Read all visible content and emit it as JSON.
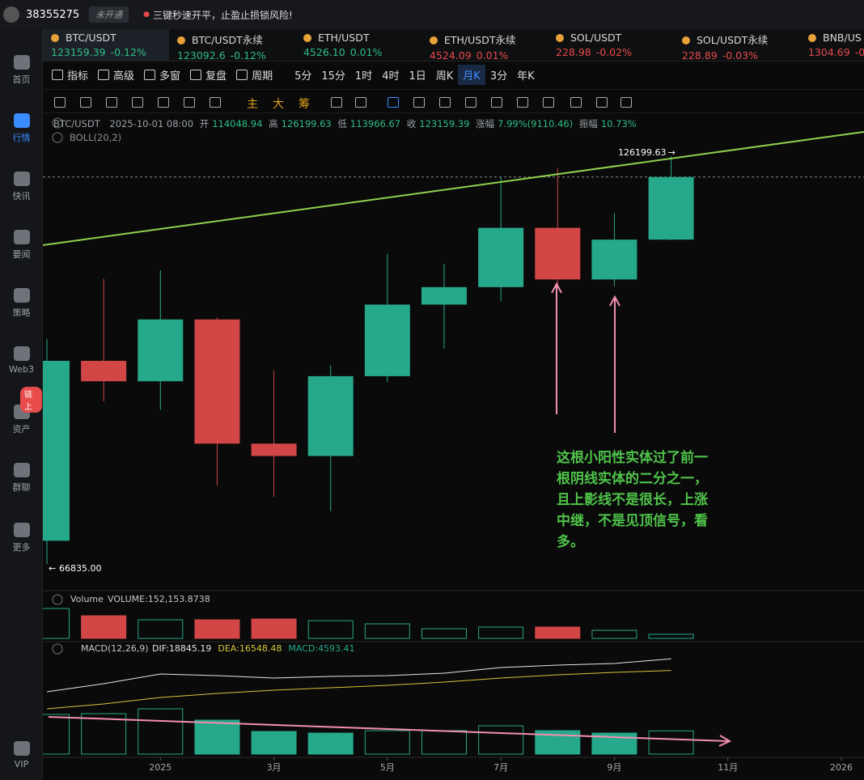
{
  "top_bar": {
    "account": "38355275",
    "status": "未开通",
    "notice": "三键秒速开平，止盈止损锁风险!"
  },
  "sidebar": [
    "首页",
    "行情",
    "快讯",
    "要闻",
    "策略",
    "Web3",
    "资产",
    "群聊",
    "更多",
    "VIP"
  ],
  "sidebar_badge": "链上",
  "tickers": [
    {
      "name": "BTC/USDT",
      "price": "123159.39",
      "change": "-0.12%",
      "color": "#2ebd85"
    },
    {
      "name": "BTC/USDT永续",
      "price": "123092.6",
      "change": "-0.12%",
      "color": "#2ebd85"
    },
    {
      "name": "ETH/USDT",
      "price": "4526.10",
      "change": "0.01%",
      "color": "#2ebd85"
    },
    {
      "name": "ETH/USDT永续",
      "price": "4524.09",
      "change": "0.01%",
      "color": "#e84b4b"
    },
    {
      "name": "SOL/USDT",
      "price": "228.98",
      "change": "-0.02%",
      "color": "#e84b4b"
    },
    {
      "name": "SOL/USDT永续",
      "price": "228.89",
      "change": "-0.03%",
      "color": "#e84b4b"
    },
    {
      "name": "BNB/US",
      "price": "1304.69",
      "change": "-0.",
      "color": "#e84b4b"
    }
  ],
  "toolbar": [
    "指标",
    "高级",
    "多窗",
    "复盘",
    "周期"
  ],
  "periods": [
    "5分",
    "15分",
    "1时",
    "4时",
    "1日",
    "周K",
    "月K",
    "3分",
    "年K"
  ],
  "tools": [
    "主",
    "大",
    "筹"
  ],
  "chart_header": {
    "symbol": "BTC/USDT",
    "time": "2025-10-01 08:00",
    "open_label": "开",
    "high_label": "高",
    "low_label": "低",
    "close_label": "收",
    "change_label": "涨幅",
    "change": "7.99%(9110.46)",
    "amplitude_label": "振幅",
    "amplitude": "10.73%",
    "indicator": "BOLL(20,2)"
  },
  "annotation": [
    "这根小阳性实体过了前一",
    "根阴线实体的二分之一，",
    "且上影线不是很长，上涨",
    "中继，不是见顶信号，看",
    "多。"
  ],
  "chart_data": [
    {
      "type": "candlestick",
      "x": [
        "2024-11",
        "2024-12",
        "2025-01",
        "2025-02",
        "2025-03",
        "2025-04",
        "2025-05",
        "2025-06",
        "2025-07",
        "2025-08",
        "2025-09",
        "2025-10"
      ],
      "open": [
        70215,
        96407,
        93429,
        102429,
        84350,
        82550,
        94172,
        104591,
        107135,
        115764,
        108246,
        114048.94
      ],
      "high": [
        99588,
        108353,
        109588,
        102750,
        95000,
        95758,
        111980,
        110530,
        123218,
        124474,
        117900,
        126199.63
      ],
      "low": [
        66835,
        90500,
        89256,
        78258,
        76606,
        74508,
        93322,
        98200,
        105100,
        107350,
        107255,
        113966.67
      ],
      "close": [
        96407,
        93429,
        102429,
        84350,
        82550,
        94172,
        104591,
        107135,
        115764,
        108246,
        114048.94,
        123159.39
      ],
      "low_label": "66835.00",
      "up_color": "#26a88a",
      "down_color": "#d24646",
      "ylim": [
        62950,
        131850
      ],
      "xlim": [
        "2024-11",
        "2026-01"
      ],
      "xticks": [
        {
          "value": "2025-01",
          "label": "2025"
        },
        {
          "value": "2025-03",
          "label": "3月"
        },
        {
          "value": "2025-05",
          "label": "5月"
        },
        {
          "value": "2025-07",
          "label": "7月"
        },
        {
          "value": "2025-09",
          "label": "9月"
        },
        {
          "value": "2025-11",
          "label": "11月"
        },
        {
          "value": "2026-01",
          "label": "2026"
        }
      ]
    },
    {
      "type": "bar",
      "title": "Volume",
      "legend": "VOLUME:152,153.8738",
      "values": [
        1110000,
        840000,
        690000,
        690000,
        720000,
        660000,
        540000,
        360000,
        420000,
        420000,
        300000,
        152153.8738
      ],
      "ylim": [
        0,
        1230000
      ]
    },
    {
      "type": "combo",
      "title": "MACD(12,26,9)",
      "ylim": [
        0,
        20320
      ],
      "series": [
        {
          "label": "DIF:18845.19",
          "kind": "line",
          "color": "#e6e6e6",
          "values": [
            12320,
            13920,
            15840,
            15520,
            15040,
            15360,
            15520,
            16000,
            17120,
            17600,
            17920,
            18845.19
          ]
        },
        {
          "label": "DEA:16548.48",
          "kind": "line",
          "color": "#d6c53a",
          "values": [
            8960,
            9920,
            11200,
            12000,
            12640,
            13120,
            13600,
            14240,
            15040,
            15680,
            16160,
            16548.48
          ]
        },
        {
          "label": "MACD:4593.41",
          "kind": "bar",
          "color": "#26a88a",
          "values": [
            7840,
            8000,
            8960,
            6720,
            4480,
            4160,
            4640,
            4640,
            5600,
            4640,
            4160,
            4593.41
          ]
        }
      ]
    }
  ]
}
